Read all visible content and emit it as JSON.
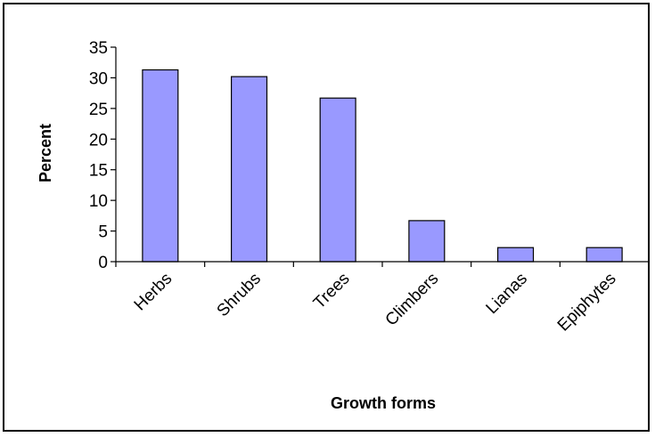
{
  "chart_data": {
    "type": "bar",
    "categories": [
      "Herbs",
      "Shrubs",
      "Trees",
      "Climbers",
      "Lianas",
      "Epiphytes"
    ],
    "values": [
      31.3,
      30.2,
      26.7,
      6.7,
      2.3,
      2.3
    ],
    "xlabel": "Growth forms",
    "ylabel": "Percent",
    "ylim": [
      0,
      35
    ],
    "yticks": [
      0,
      5,
      10,
      15,
      20,
      25,
      30,
      35
    ],
    "grid": false,
    "legend": "none",
    "bar_color": "#9999ff",
    "bar_edge_color": "#000000"
  }
}
